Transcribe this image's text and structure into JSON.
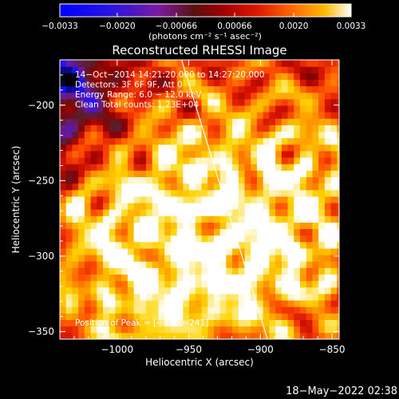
{
  "chart_data": {
    "type": "heatmap",
    "title": "Reconstructed RHESSI Image",
    "xlabel": "Heliocentric X (arcsec)",
    "ylabel": "Heliocentric Y (arcsec)",
    "xlim": [
      -1040,
      -845
    ],
    "ylim": [
      -355,
      -170
    ],
    "x_ticks": [
      -1000,
      -950,
      -900,
      -850
    ],
    "y_ticks": [
      -200,
      -250,
      -300,
      -350
    ],
    "x_tick_labels": [
      "−1000",
      "−950",
      "−900",
      "−850"
    ],
    "y_tick_labels": [
      "−200",
      "−250",
      "−300",
      "−350"
    ],
    "colorbar": {
      "range": [
        -0.0033,
        0.0033
      ],
      "ticks": [
        -0.0033,
        -0.002,
        -0.00066,
        0.00066,
        0.002,
        0.0033
      ],
      "tick_labels": [
        "−0.0033",
        "−0.0020",
        "−0.00066",
        "0.00066",
        "0.0020",
        "0.0033"
      ],
      "unit_label": "(photons cm⁻² s⁻¹ asec⁻²)"
    },
    "annotations": [
      "14−Oct−2014 14:21:20.000 to 14:27:20.000",
      "Detectors: 3F 6F 9F, Att 0",
      "Energy Range: 6.0 − 12.0 keV",
      "Clean    Total counts: 1.23E+04"
    ],
    "peak_label": "Position of Peak = [−870,−241]",
    "peak": [
      -870,
      -241
    ],
    "limb_line": [
      [
        -955,
        -170
      ],
      [
        -895,
        -355
      ]
    ],
    "bright_sources": [
      [
        -945,
        -245
      ],
      [
        -870,
        -241
      ],
      [
        -875,
        -300
      ],
      [
        -1005,
        -275
      ],
      [
        -985,
        -335
      ],
      [
        -930,
        -315
      ]
    ],
    "grid": false,
    "colormap": [
      "#000000",
      "#1010ff",
      "#6a1aa8",
      "#5a1e2a",
      "#8a0000",
      "#d01000",
      "#ff4a00",
      "#ff9400",
      "#ffd400",
      "#ffffff"
    ]
  },
  "timestamp": "18−May−2022 02:38"
}
